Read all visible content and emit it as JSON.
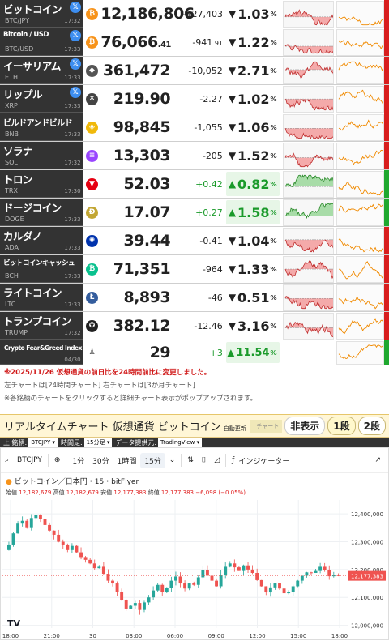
{
  "colors": {
    "up": "#1a9a2a",
    "down": "#e02020",
    "name_bg": "#333333",
    "header_bg": "#fff6d6"
  },
  "rows": [
    {
      "name": "ビットコイン",
      "symbol": "BTC/JPY",
      "time": "17:32",
      "x": true,
      "icon": "bitcoin-icon",
      "icon_color": "#f7931a",
      "icon_glyph": "₿",
      "price": "12,186,806",
      "change": "-127,403",
      "dir": "down",
      "arrow": "▼",
      "pct": "1.03",
      "pct_unit": "%"
    },
    {
      "name": "Bitcoin / USD",
      "symbol": "BTC/USD",
      "time": "17:33",
      "x": true,
      "icon": "bitcoin-icon",
      "icon_color": "#f7931a",
      "icon_glyph": "₿",
      "price": "76,066",
      "price_dec": ".41",
      "change": "-941",
      "change_dec": ".91",
      "dir": "down",
      "arrow": "▼",
      "pct": "1.22",
      "pct_unit": "%"
    },
    {
      "name": "イーサリアム",
      "symbol": "ETH",
      "time": "17:33",
      "x": true,
      "icon": "ethereum-icon",
      "icon_color": "#555555",
      "icon_glyph": "◆",
      "price": "361,472",
      "change": "-10,052",
      "dir": "down",
      "arrow": "▼",
      "pct": "2.71",
      "pct_unit": "%"
    },
    {
      "name": "リップル",
      "symbol": "XRP",
      "time": "17:33",
      "x": true,
      "icon": "xrp-icon",
      "icon_color": "#444444",
      "icon_glyph": "✕",
      "price": "219.90",
      "change": "-2.27",
      "dir": "down",
      "arrow": "▼",
      "pct": "1.02",
      "pct_unit": "%"
    },
    {
      "name": "ビルドアンドビルド",
      "symbol": "BNB",
      "time": "17:33",
      "x": false,
      "icon": "bnb-icon",
      "icon_color": "#f0b90b",
      "icon_glyph": "◈",
      "price": "98,845",
      "change": "-1,055",
      "dir": "down",
      "arrow": "▼",
      "pct": "1.06",
      "pct_unit": "%"
    },
    {
      "name": "ソラナ",
      "symbol": "SOL",
      "time": "17:32",
      "x": false,
      "icon": "solana-icon",
      "icon_color": "#9945ff",
      "icon_glyph": "≡",
      "price": "13,303",
      "change": "-205",
      "dir": "down",
      "arrow": "▼",
      "pct": "1.52",
      "pct_unit": "%"
    },
    {
      "name": "トロン",
      "symbol": "TRX",
      "time": "17:30",
      "x": false,
      "icon": "tron-icon",
      "icon_color": "#e60012",
      "icon_glyph": "▼",
      "price": "52.03",
      "change": "+0.42",
      "dir": "up",
      "arrow": "▲",
      "pct": "0.82",
      "pct_unit": "%"
    },
    {
      "name": "ドージコイン",
      "symbol": "DOGE",
      "time": "17:33",
      "x": false,
      "icon": "dogecoin-icon",
      "icon_color": "#c2a633",
      "icon_glyph": "Ð",
      "price": "17.07",
      "change": "+0.27",
      "dir": "up",
      "arrow": "▲",
      "pct": "1.58",
      "pct_unit": "%"
    },
    {
      "name": "カルダノ",
      "symbol": "ADA",
      "time": "17:33",
      "x": false,
      "icon": "cardano-icon",
      "icon_color": "#0033ad",
      "icon_glyph": "✺",
      "price": "39.44",
      "change": "-0.41",
      "dir": "down",
      "arrow": "▼",
      "pct": "1.04",
      "pct_unit": "%"
    },
    {
      "name": "ビットコインキャッシュ",
      "symbol": "BCH",
      "time": "17:33",
      "x": false,
      "icon": "bitcoin-cash-icon",
      "icon_color": "#0ac18e",
      "icon_glyph": "₿",
      "price": "71,351",
      "change": "-964",
      "dir": "down",
      "arrow": "▼",
      "pct": "1.33",
      "pct_unit": "%"
    },
    {
      "name": "ライトコイン",
      "symbol": "LTC",
      "time": "17:33",
      "x": false,
      "icon": "litecoin-icon",
      "icon_color": "#345d9d",
      "icon_glyph": "Ł",
      "price": "8,893",
      "change": "-46",
      "dir": "down",
      "arrow": "▼",
      "pct": "0.51",
      "pct_unit": "%"
    },
    {
      "name": "トランプコイン",
      "symbol": "TRUMP",
      "time": "17:32",
      "x": false,
      "icon": "trump-icon",
      "icon_color": "#222222",
      "icon_glyph": "✪",
      "price": "382.12",
      "change": "-12.46",
      "dir": "down",
      "arrow": "▼",
      "pct": "3.16",
      "pct_unit": "%"
    }
  ],
  "feargreed": {
    "name": "Crypto Fear&Greed Index",
    "date": "04/30",
    "value": "29",
    "change": "+3",
    "arrow": "▲",
    "pct": "11.54",
    "pct_unit": "%",
    "icon": "user-icon"
  },
  "notes": {
    "red": "※2025/11/26 仮想通貨の前日比を24時間前比に変更しました。",
    "line1": "左チャートは[24時間チャート] 右チャートは[3か月チャート]",
    "line2": "※各銘柄のチャートをクリックすると詳細チャート表示がポップアップされます。"
  },
  "rtc": {
    "title": "リアルタイムチャート 仮想通貨 ビットコイン",
    "auto": "自動更新",
    "chart_label": "チャート",
    "btn_hide": "非表示",
    "btn_1": "1段",
    "btn_2": "2段"
  },
  "selbar": {
    "label_symbol": "上 銘柄:",
    "symbol": "BTCJPY",
    "label_time": "時間足:",
    "time": "15分足",
    "label_src": "データ提供元:",
    "src": "TradingView"
  },
  "tv": {
    "symbol": "BTCJPY",
    "tf_1": "1分",
    "tf_30": "30分",
    "tf_1h": "1時間",
    "tf_15": "15分",
    "indicators": "インジケーター",
    "legend": "ビットコイン／日本円・15・bitFlyer",
    "o_label": "始値",
    "o": "12,182,679",
    "h_label": "高値",
    "h": "12,182,679",
    "l_label": "安値",
    "l": "12,177,383",
    "c_label": "終値",
    "c": "12,177,383",
    "chg": "−6,098 (−0.05%)",
    "logo": "TV"
  },
  "chart_data": {
    "type": "candlestick",
    "x_ticks": [
      "18:00",
      "21:00",
      "30",
      "03:00",
      "06:00",
      "09:00",
      "12:00",
      "15:00",
      "18:00"
    ],
    "y_ticks": [
      12400000,
      12300000,
      12200000,
      12100000,
      12000000
    ],
    "ylim": [
      11990000,
      12450000
    ],
    "last_price": "12,177,383",
    "closes": [
      12290000,
      12330000,
      12365000,
      12375000,
      12352000,
      12385000,
      12395000,
      12383000,
      12360000,
      12340000,
      12325000,
      12300000,
      12290000,
      12270000,
      12285000,
      12262000,
      12245000,
      12235000,
      12222000,
      12205000,
      12210000,
      12185000,
      12160000,
      12150000,
      12120000,
      12090000,
      12060000,
      12070000,
      12080000,
      12055000,
      12082000,
      12100000,
      12125000,
      12145000,
      12120000,
      12135000,
      12160000,
      12175000,
      12150000,
      12132000,
      12150000,
      12145000,
      12172000,
      12198000,
      12178000,
      12160000,
      12140000,
      12180000,
      12210000,
      12222000,
      12208000,
      12195000,
      12215000,
      12200000,
      12188000,
      12162000,
      12140000,
      12118000,
      12136000,
      12150000,
      12132000,
      12115000,
      12120000,
      12140000,
      12160000,
      12178000,
      12190000,
      12188000,
      12195000,
      12210000,
      12198000,
      12176000,
      12180000,
      12177383
    ]
  }
}
